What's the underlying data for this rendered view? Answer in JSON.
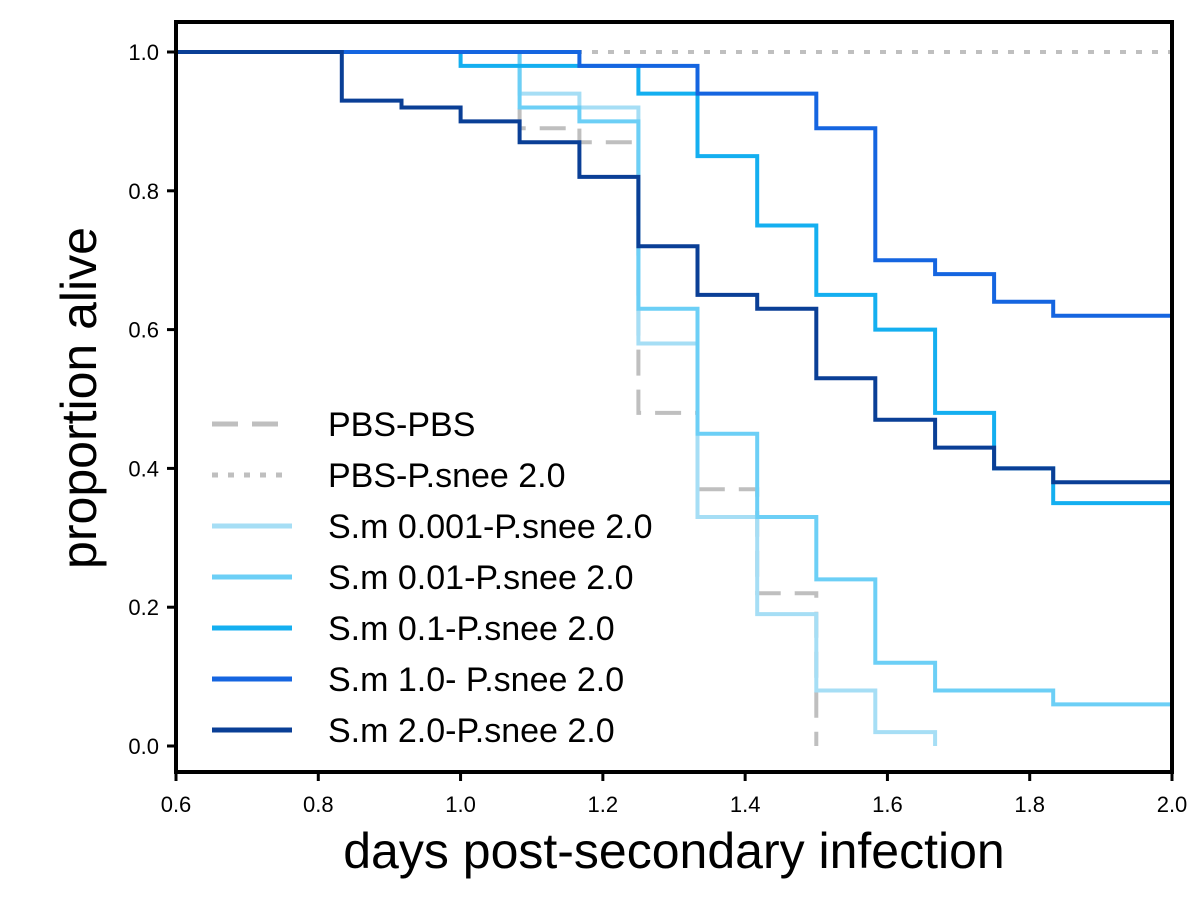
{
  "chart_data": {
    "type": "line",
    "step": true,
    "title": "",
    "xlabel": "days post-secondary infection",
    "ylabel": "proportion alive",
    "xlim": [
      0.6,
      2.0
    ],
    "ylim": [
      0.0,
      1.0
    ],
    "xticks": [
      "0.6",
      "0.8",
      "1.0",
      "1.2",
      "1.4",
      "1.6",
      "1.8",
      "2.0"
    ],
    "yticks": [
      "0.0",
      "0.2",
      "0.4",
      "0.6",
      "0.8",
      "1.0"
    ],
    "grid": false,
    "legend_position": "bottom-left",
    "series": [
      {
        "name": "PBS-PBS",
        "color": "#bfbfbf",
        "dash": "longdash",
        "x": [
          0.6,
          1.083,
          1.167,
          1.25,
          1.333,
          1.417,
          1.5,
          1.5
        ],
        "y": [
          1.0,
          0.89,
          0.87,
          0.48,
          0.37,
          0.22,
          0.08,
          0.0
        ]
      },
      {
        "name": "PBS-P.snee 2.0",
        "color": "#bfbfbf",
        "dash": "dotted",
        "x": [
          0.6,
          2.0
        ],
        "y": [
          1.0,
          1.0
        ]
      },
      {
        "name": "S.m 0.001-P.snee 2.0",
        "color": "#a6def5",
        "dash": "solid",
        "x": [
          0.6,
          1.083,
          1.167,
          1.25,
          1.333,
          1.417,
          1.5,
          1.583,
          1.667
        ],
        "y": [
          1.0,
          0.94,
          0.92,
          0.58,
          0.33,
          0.19,
          0.08,
          0.02,
          0.0
        ]
      },
      {
        "name": "S.m 0.01-P.snee 2.0",
        "color": "#6ccff6",
        "dash": "solid",
        "x": [
          0.6,
          1.083,
          1.167,
          1.25,
          1.333,
          1.417,
          1.5,
          1.583,
          1.667,
          1.833,
          2.0
        ],
        "y": [
          1.0,
          0.92,
          0.9,
          0.63,
          0.45,
          0.33,
          0.24,
          0.12,
          0.08,
          0.06,
          0.06
        ]
      },
      {
        "name": "S.m 0.1-P.snee 2.0",
        "color": "#14aff0",
        "dash": "solid",
        "x": [
          0.6,
          1.0,
          1.25,
          1.333,
          1.417,
          1.5,
          1.583,
          1.667,
          1.75,
          1.833,
          2.0
        ],
        "y": [
          1.0,
          0.98,
          0.94,
          0.85,
          0.75,
          0.65,
          0.6,
          0.48,
          0.4,
          0.35,
          0.35
        ]
      },
      {
        "name": "S.m 1.0- P.snee 2.0",
        "color": "#1565e0",
        "dash": "solid",
        "x": [
          0.6,
          1.167,
          1.333,
          1.5,
          1.583,
          1.667,
          1.75,
          1.833,
          2.0
        ],
        "y": [
          1.0,
          0.98,
          0.94,
          0.89,
          0.7,
          0.68,
          0.64,
          0.62,
          0.62
        ]
      },
      {
        "name": "S.m 2.0-P.snee 2.0",
        "color": "#0a3f96",
        "dash": "solid",
        "x": [
          0.6,
          0.833,
          0.917,
          1.0,
          1.083,
          1.167,
          1.25,
          1.333,
          1.417,
          1.5,
          1.583,
          1.667,
          1.75,
          1.833,
          2.0
        ],
        "y": [
          1.0,
          0.93,
          0.92,
          0.9,
          0.87,
          0.82,
          0.72,
          0.65,
          0.63,
          0.53,
          0.47,
          0.43,
          0.4,
          0.38,
          0.38
        ]
      }
    ]
  }
}
